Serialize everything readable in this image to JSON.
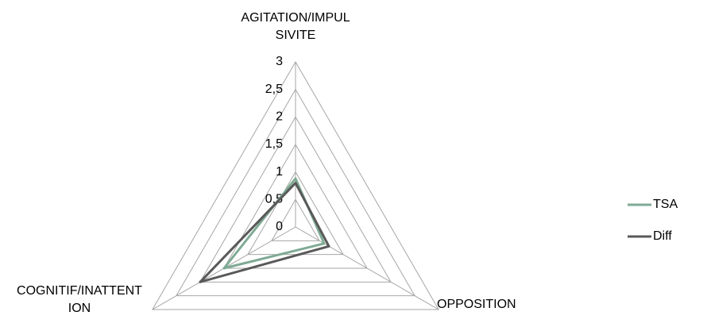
{
  "chart_data": {
    "type": "radar",
    "categories": [
      "AGITATION/IMPULSIVITE",
      "OPPOSITION",
      "COGNITIF/INATTENTION"
    ],
    "series": [
      {
        "name": "TSA",
        "color": "#7faa94",
        "values": [
          0.88,
          0.6,
          1.5
        ]
      },
      {
        "name": "Diff",
        "color": "#595959",
        "values": [
          0.8,
          0.7,
          2.0
        ]
      }
    ],
    "ylim": [
      0,
      3
    ],
    "yticks": [
      0,
      {
        "value": 0.5,
        "label": "0,5"
      },
      1,
      {
        "value": 1.5,
        "label": "1,5"
      },
      2,
      {
        "value": 2.5,
        "label": "2,5"
      },
      3
    ],
    "grid": true,
    "legend": "right"
  }
}
